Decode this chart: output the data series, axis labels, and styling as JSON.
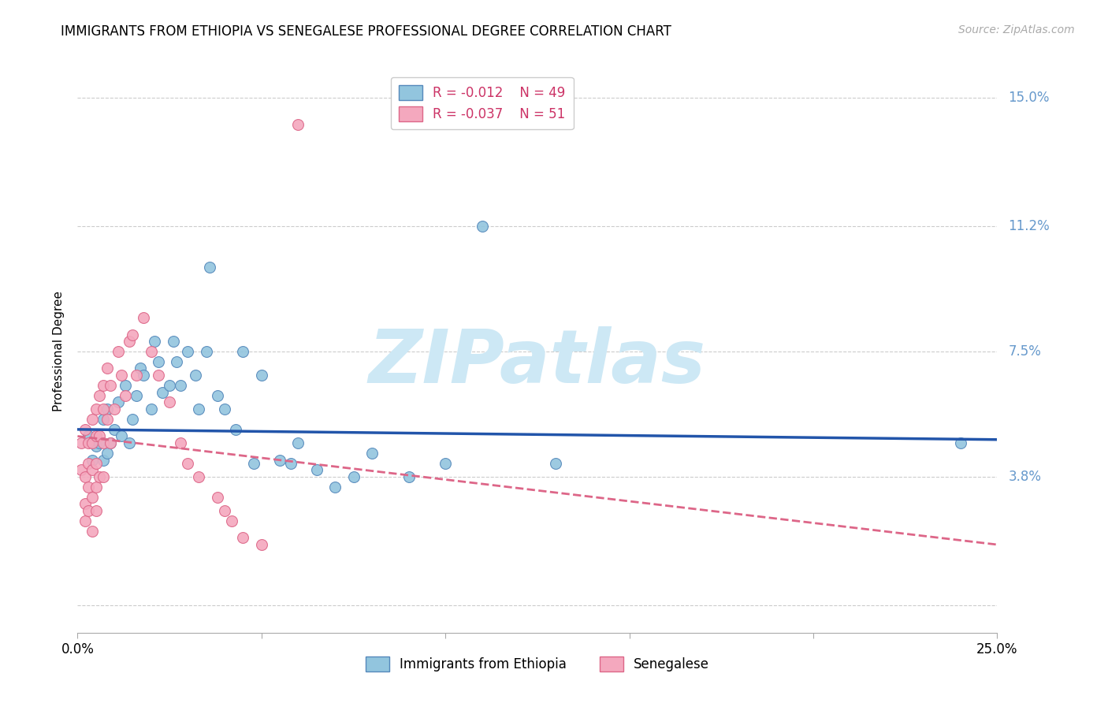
{
  "title": "IMMIGRANTS FROM ETHIOPIA VS SENEGALESE PROFESSIONAL DEGREE CORRELATION CHART",
  "source": "Source: ZipAtlas.com",
  "ylabel": "Professional Degree",
  "xlim": [
    0.0,
    0.25
  ],
  "ylim": [
    -0.008,
    0.158
  ],
  "yticks": [
    0.0,
    0.038,
    0.075,
    0.112,
    0.15
  ],
  "ytick_labels": [
    "",
    "3.8%",
    "7.5%",
    "11.2%",
    "15.0%"
  ],
  "legend_r_blue": "-0.012",
  "legend_n_blue": "49",
  "legend_r_pink": "-0.037",
  "legend_n_pink": "51",
  "legend_label_blue": "Immigrants from Ethiopia",
  "legend_label_pink": "Senegalese",
  "blue_color": "#92c5de",
  "pink_color": "#f4a8be",
  "blue_edge": "#5588bb",
  "pink_edge": "#dd6688",
  "blue_line_color": "#2255aa",
  "pink_line_color": "#dd6688",
  "right_tick_color": "#6699cc",
  "blue_scatter_x": [
    0.003,
    0.004,
    0.005,
    0.006,
    0.007,
    0.007,
    0.008,
    0.008,
    0.009,
    0.01,
    0.011,
    0.012,
    0.013,
    0.014,
    0.015,
    0.016,
    0.017,
    0.018,
    0.02,
    0.021,
    0.022,
    0.023,
    0.025,
    0.026,
    0.027,
    0.028,
    0.03,
    0.032,
    0.033,
    0.035,
    0.036,
    0.038,
    0.04,
    0.043,
    0.045,
    0.048,
    0.05,
    0.055,
    0.058,
    0.06,
    0.065,
    0.07,
    0.075,
    0.08,
    0.09,
    0.1,
    0.11,
    0.13,
    0.24
  ],
  "blue_scatter_y": [
    0.05,
    0.043,
    0.047,
    0.048,
    0.055,
    0.043,
    0.045,
    0.058,
    0.048,
    0.052,
    0.06,
    0.05,
    0.065,
    0.048,
    0.055,
    0.062,
    0.07,
    0.068,
    0.058,
    0.078,
    0.072,
    0.063,
    0.065,
    0.078,
    0.072,
    0.065,
    0.075,
    0.068,
    0.058,
    0.075,
    0.1,
    0.062,
    0.058,
    0.052,
    0.075,
    0.042,
    0.068,
    0.043,
    0.042,
    0.048,
    0.04,
    0.035,
    0.038,
    0.045,
    0.038,
    0.042,
    0.112,
    0.042,
    0.048
  ],
  "pink_scatter_x": [
    0.001,
    0.001,
    0.002,
    0.002,
    0.002,
    0.002,
    0.003,
    0.003,
    0.003,
    0.003,
    0.004,
    0.004,
    0.004,
    0.004,
    0.004,
    0.005,
    0.005,
    0.005,
    0.005,
    0.005,
    0.006,
    0.006,
    0.006,
    0.007,
    0.007,
    0.007,
    0.007,
    0.008,
    0.008,
    0.009,
    0.009,
    0.01,
    0.011,
    0.012,
    0.013,
    0.014,
    0.015,
    0.016,
    0.018,
    0.02,
    0.022,
    0.025,
    0.028,
    0.03,
    0.033,
    0.038,
    0.04,
    0.042,
    0.045,
    0.05,
    0.06
  ],
  "pink_scatter_y": [
    0.048,
    0.04,
    0.052,
    0.038,
    0.03,
    0.025,
    0.048,
    0.042,
    0.035,
    0.028,
    0.055,
    0.048,
    0.04,
    0.032,
    0.022,
    0.058,
    0.05,
    0.042,
    0.035,
    0.028,
    0.062,
    0.05,
    0.038,
    0.065,
    0.058,
    0.048,
    0.038,
    0.07,
    0.055,
    0.065,
    0.048,
    0.058,
    0.075,
    0.068,
    0.062,
    0.078,
    0.08,
    0.068,
    0.085,
    0.075,
    0.068,
    0.06,
    0.048,
    0.042,
    0.038,
    0.032,
    0.028,
    0.025,
    0.02,
    0.018,
    0.142
  ],
  "blue_line_x": [
    0.0,
    0.25
  ],
  "blue_line_y": [
    0.052,
    0.049
  ],
  "pink_line_x": [
    0.0,
    0.25
  ],
  "pink_line_y": [
    0.05,
    0.018
  ],
  "marker_size": 100,
  "title_fontsize": 12,
  "source_fontsize": 10,
  "axis_label_fontsize": 11,
  "tick_fontsize": 12,
  "watermark_text": "ZIPatlas",
  "watermark_color": "#cde8f5",
  "watermark_fontsize": 68
}
